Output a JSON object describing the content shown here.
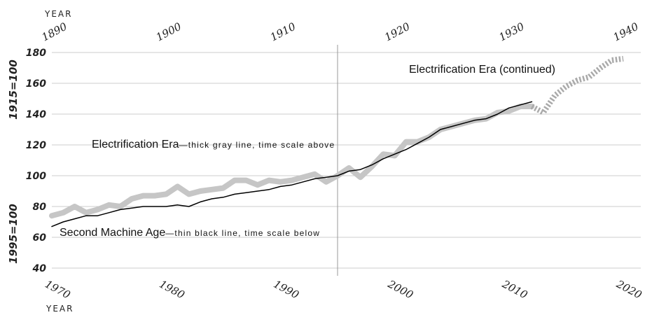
{
  "chart_data": {
    "type": "line",
    "title": "",
    "top_axis": {
      "label": "YEAR",
      "ticks": [
        1890,
        1900,
        1910,
        1920,
        1930,
        1940
      ],
      "range": [
        1890,
        1940
      ]
    },
    "bottom_axis": {
      "label": "YEAR",
      "ticks": [
        1970,
        1980,
        1990,
        2000,
        2010,
        2020
      ],
      "range": [
        1970,
        2020
      ]
    },
    "y_axis": {
      "upper_label": "1915=100",
      "lower_label": "1995=100",
      "ticks": [
        40,
        60,
        80,
        100,
        120,
        140,
        160,
        180
      ],
      "range": [
        35,
        185
      ]
    },
    "grid": true,
    "divider_year_bottom": 1995,
    "annotations": {
      "continued": "Electrification Era (continued)",
      "electrification_main": "Electrification Era",
      "electrification_note": "—thick gray line, time scale above",
      "second_machine_main": "Second Machine Age",
      "second_machine_note": "—thin black line, time scale below"
    },
    "series": [
      {
        "name": "Electrification Era",
        "axis": "top",
        "color": "#c6c6c6",
        "style": "thick",
        "x": [
          1890,
          1891,
          1892,
          1893,
          1894,
          1895,
          1896,
          1897,
          1898,
          1899,
          1900,
          1901,
          1902,
          1903,
          1904,
          1905,
          1906,
          1907,
          1908,
          1909,
          1910,
          1911,
          1912,
          1913,
          1914,
          1915,
          1916,
          1917,
          1918,
          1919,
          1920,
          1921,
          1922,
          1923,
          1924,
          1925,
          1926,
          1927,
          1928,
          1929,
          1930,
          1931,
          1932
        ],
        "y": [
          74,
          76,
          80,
          76,
          78,
          81,
          80,
          85,
          87,
          87,
          88,
          93,
          88,
          90,
          91,
          92,
          97,
          97,
          94,
          97,
          96,
          97,
          99,
          101,
          96,
          100,
          105,
          99,
          106,
          114,
          113,
          122,
          122,
          125,
          130,
          132,
          134,
          136,
          137,
          141,
          142,
          145,
          145
        ]
      },
      {
        "name": "Electrification Era (continued)",
        "axis": "top",
        "color": "#aaaaaa",
        "style": "dotted",
        "x": [
          1932,
          1933,
          1934,
          1935,
          1936,
          1937,
          1938,
          1939,
          1940
        ],
        "y": [
          145,
          141,
          152,
          158,
          162,
          164,
          170,
          175,
          176
        ]
      },
      {
        "name": "Second Machine Age",
        "axis": "bottom",
        "color": "#000000",
        "style": "thin",
        "x": [
          1970,
          1971,
          1972,
          1973,
          1974,
          1975,
          1976,
          1977,
          1978,
          1979,
          1980,
          1981,
          1982,
          1983,
          1984,
          1985,
          1986,
          1987,
          1988,
          1989,
          1990,
          1991,
          1992,
          1993,
          1994,
          1995,
          1996,
          1997,
          1998,
          1999,
          2000,
          2001,
          2002,
          2003,
          2004,
          2005,
          2006,
          2007,
          2008,
          2009,
          2010,
          2011,
          2012
        ],
        "y": [
          67,
          70,
          72,
          74,
          74,
          76,
          78,
          79,
          80,
          80,
          80,
          81,
          80,
          83,
          85,
          86,
          88,
          89,
          90,
          91,
          93,
          94,
          96,
          98,
          99,
          100,
          103,
          104,
          107,
          111,
          114,
          117,
          121,
          125,
          130,
          132,
          134,
          136,
          137,
          140,
          144,
          146,
          148
        ]
      }
    ]
  }
}
